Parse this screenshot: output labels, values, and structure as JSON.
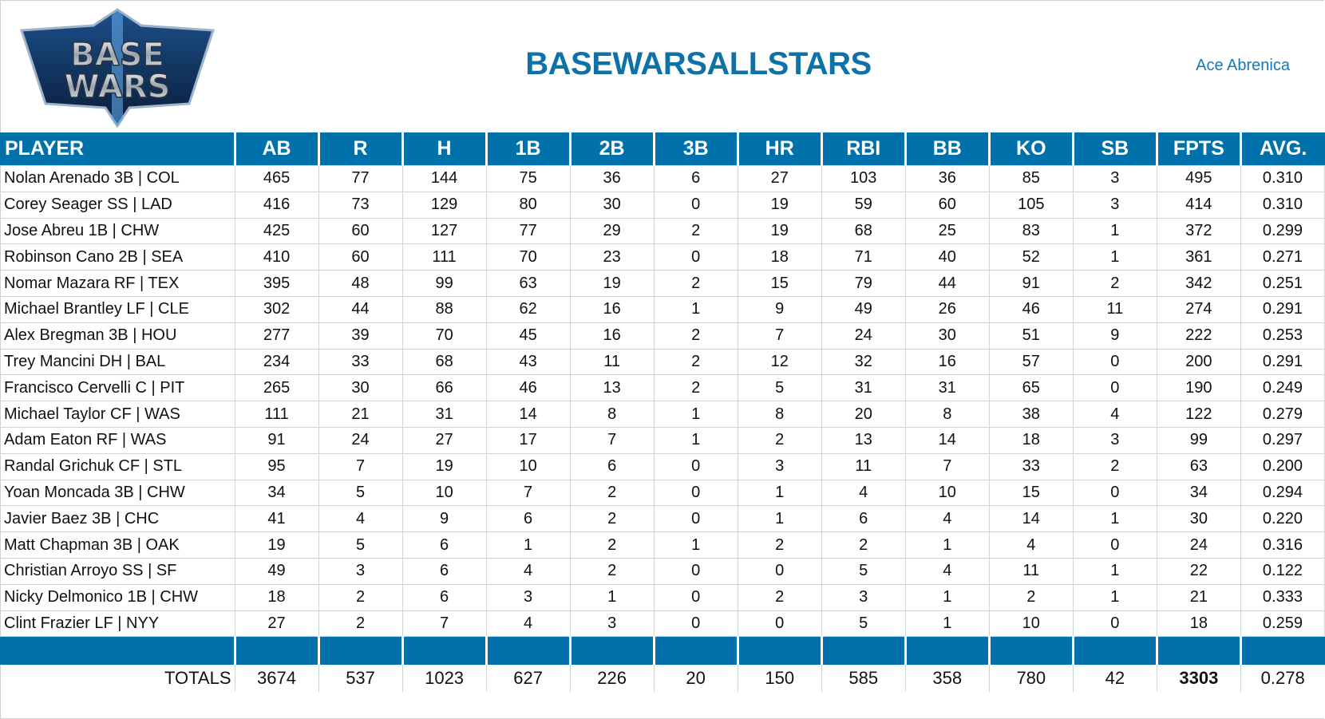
{
  "header": {
    "logo_text": "BASE WARS",
    "title": "BASEWARSALLSTARS",
    "author": "Ace Abrenica"
  },
  "colors": {
    "accent": "#0071aa",
    "title": "#0e72a8"
  },
  "table": {
    "columns": [
      "PLAYER",
      "AB",
      "R",
      "H",
      "1B",
      "2B",
      "3B",
      "HR",
      "RBI",
      "BB",
      "KO",
      "SB",
      "FPTS",
      "AVG."
    ],
    "rows": [
      [
        "Nolan Arenado 3B | COL",
        "465",
        "77",
        "144",
        "75",
        "36",
        "6",
        "27",
        "103",
        "36",
        "85",
        "3",
        "495",
        "0.310"
      ],
      [
        "Corey Seager SS | LAD",
        "416",
        "73",
        "129",
        "80",
        "30",
        "0",
        "19",
        "59",
        "60",
        "105",
        "3",
        "414",
        "0.310"
      ],
      [
        "Jose Abreu 1B | CHW",
        "425",
        "60",
        "127",
        "77",
        "29",
        "2",
        "19",
        "68",
        "25",
        "83",
        "1",
        "372",
        "0.299"
      ],
      [
        "Robinson Cano 2B | SEA",
        "410",
        "60",
        "111",
        "70",
        "23",
        "0",
        "18",
        "71",
        "40",
        "52",
        "1",
        "361",
        "0.271"
      ],
      [
        "Nomar Mazara RF | TEX",
        "395",
        "48",
        "99",
        "63",
        "19",
        "2",
        "15",
        "79",
        "44",
        "91",
        "2",
        "342",
        "0.251"
      ],
      [
        "Michael Brantley LF | CLE",
        "302",
        "44",
        "88",
        "62",
        "16",
        "1",
        "9",
        "49",
        "26",
        "46",
        "11",
        "274",
        "0.291"
      ],
      [
        "Alex Bregman 3B | HOU",
        "277",
        "39",
        "70",
        "45",
        "16",
        "2",
        "7",
        "24",
        "30",
        "51",
        "9",
        "222",
        "0.253"
      ],
      [
        "Trey Mancini DH | BAL",
        "234",
        "33",
        "68",
        "43",
        "11",
        "2",
        "12",
        "32",
        "16",
        "57",
        "0",
        "200",
        "0.291"
      ],
      [
        "Francisco Cervelli C | PIT",
        "265",
        "30",
        "66",
        "46",
        "13",
        "2",
        "5",
        "31",
        "31",
        "65",
        "0",
        "190",
        "0.249"
      ],
      [
        "Michael Taylor CF | WAS",
        "111",
        "21",
        "31",
        "14",
        "8",
        "1",
        "8",
        "20",
        "8",
        "38",
        "4",
        "122",
        "0.279"
      ],
      [
        "Adam Eaton RF | WAS",
        "91",
        "24",
        "27",
        "17",
        "7",
        "1",
        "2",
        "13",
        "14",
        "18",
        "3",
        "99",
        "0.297"
      ],
      [
        "Randal Grichuk CF | STL",
        "95",
        "7",
        "19",
        "10",
        "6",
        "0",
        "3",
        "11",
        "7",
        "33",
        "2",
        "63",
        "0.200"
      ],
      [
        "Yoan Moncada 3B | CHW",
        "34",
        "5",
        "10",
        "7",
        "2",
        "0",
        "1",
        "4",
        "10",
        "15",
        "0",
        "34",
        "0.294"
      ],
      [
        "Javier Baez 3B | CHC",
        "41",
        "4",
        "9",
        "6",
        "2",
        "0",
        "1",
        "6",
        "4",
        "14",
        "1",
        "30",
        "0.220"
      ],
      [
        "Matt Chapman 3B | OAK",
        "19",
        "5",
        "6",
        "1",
        "2",
        "1",
        "2",
        "2",
        "1",
        "4",
        "0",
        "24",
        "0.316"
      ],
      [
        "Christian Arroyo SS | SF",
        "49",
        "3",
        "6",
        "4",
        "2",
        "0",
        "0",
        "5",
        "4",
        "11",
        "1",
        "22",
        "0.122"
      ],
      [
        "Nicky Delmonico 1B | CHW",
        "18",
        "2",
        "6",
        "3",
        "1",
        "0",
        "2",
        "3",
        "1",
        "2",
        "1",
        "21",
        "0.333"
      ],
      [
        "Clint Frazier LF | NYY",
        "27",
        "2",
        "7",
        "4",
        "3",
        "0",
        "0",
        "5",
        "1",
        "10",
        "0",
        "18",
        "0.259"
      ]
    ],
    "totals": [
      "TOTALS",
      "3674",
      "537",
      "1023",
      "627",
      "226",
      "20",
      "150",
      "585",
      "358",
      "780",
      "42",
      "3303",
      "0.278"
    ]
  }
}
